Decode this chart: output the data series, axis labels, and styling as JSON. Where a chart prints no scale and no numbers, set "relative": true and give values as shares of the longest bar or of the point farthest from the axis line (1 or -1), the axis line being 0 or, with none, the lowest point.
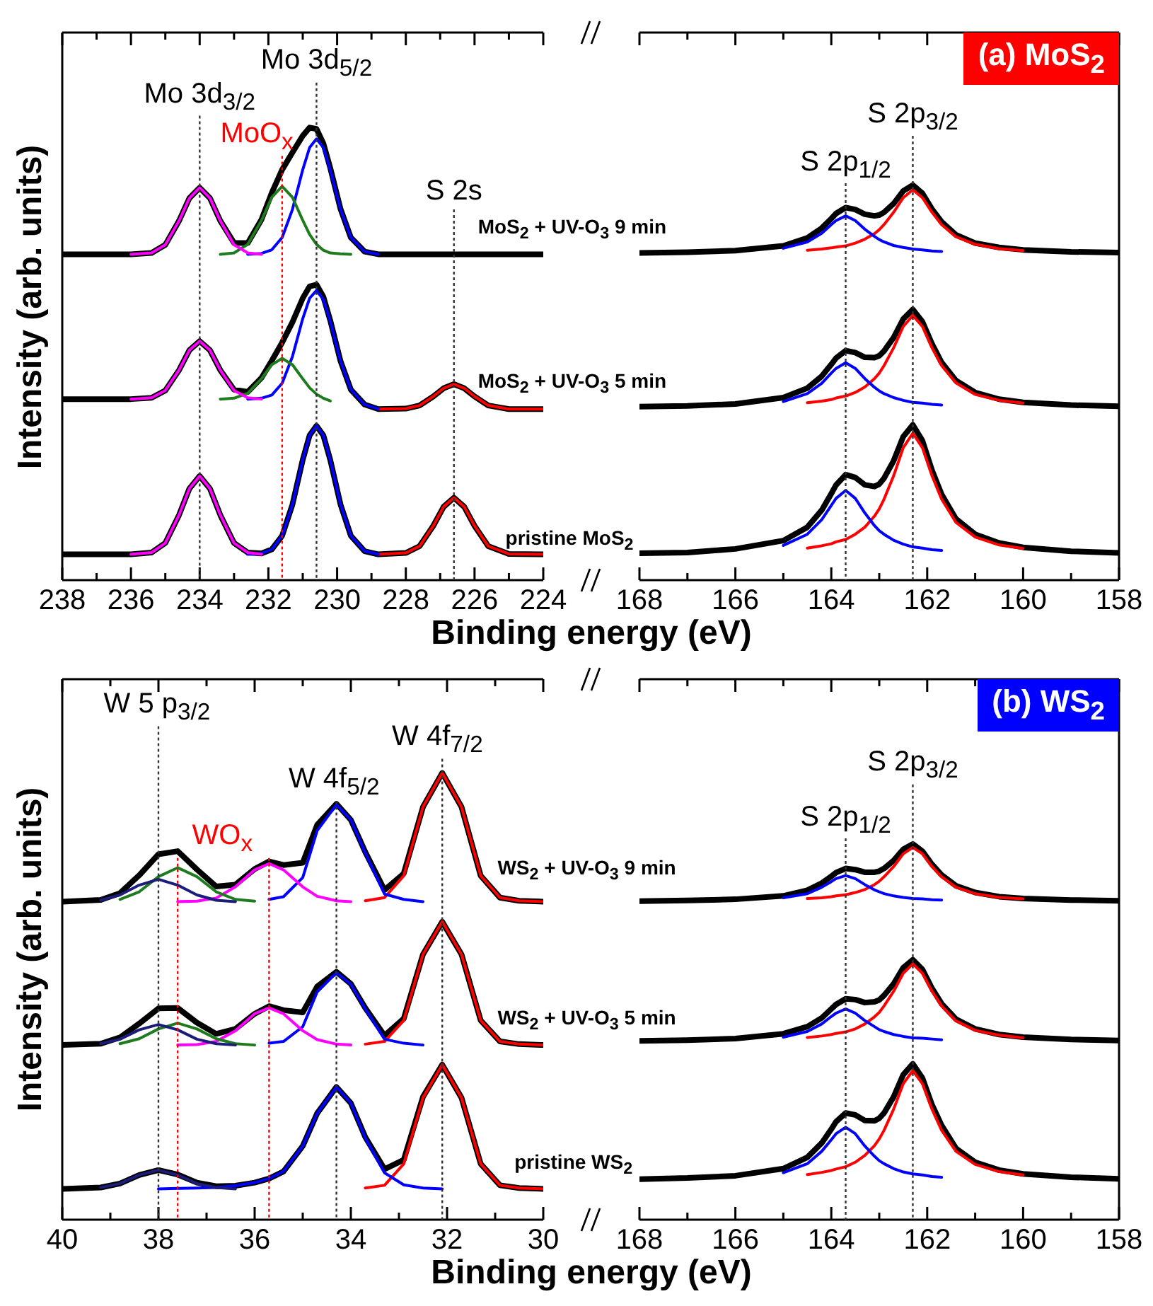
{
  "chart_data": [
    {
      "type": "line",
      "ylabel": "Intensity (arb. units)",
      "xlabel": "Binding energy (eV)",
      "relative": true,
      "marker": "none",
      "x": [
        238,
        236,
        235.4,
        235,
        234.6,
        234.3,
        234,
        233.7,
        233.4,
        233,
        232.6,
        232.2,
        231.9,
        231.6,
        231.3,
        231,
        230.8,
        230.6,
        230.4,
        230.2,
        229.9,
        229.6,
        229.2,
        228.8,
        228,
        227.6,
        227.2,
        226.9,
        226.6,
        226.3,
        226,
        225.6,
        225,
        224
      ],
      "xlim": [
        238,
        224
      ],
      "xticks": [
        238,
        {
          "value": 237,
          "label": null
        },
        236,
        {
          "value": 235,
          "label": null
        },
        234,
        {
          "value": 233,
          "label": null
        },
        232,
        {
          "value": 231,
          "label": null
        },
        230,
        {
          "value": 229,
          "label": null
        },
        228,
        {
          "value": 227,
          "label": null
        },
        226,
        {
          "value": 225,
          "label": null
        },
        224
      ],
      "series": [
        {
          "color": "#ff00ff",
          "values": [
            null,
            0.72,
            0.723,
            0.741,
            0.794,
            0.844,
            0.867,
            0.844,
            0.794,
            0.741,
            0.723,
            0.72,
            null,
            null,
            null,
            null,
            null,
            null,
            null,
            null,
            null,
            null,
            null,
            null,
            null,
            null,
            null,
            null,
            null,
            null,
            null,
            null,
            null,
            null
          ]
        },
        {
          "color": "#1e7b1e",
          "values": [
            null,
            null,
            null,
            null,
            null,
            null,
            null,
            null,
            0.72,
            0.723,
            0.742,
            0.795,
            0.846,
            0.87,
            0.846,
            0.795,
            0.764,
            0.742,
            0.729,
            0.723,
            0.721,
            0.72,
            null,
            null,
            null,
            null,
            null,
            null,
            null,
            null,
            null,
            null,
            null,
            null
          ]
        },
        {
          "color": "#0000ff",
          "values": [
            null,
            null,
            null,
            null,
            null,
            null,
            null,
            null,
            null,
            null,
            0.72,
            0.722,
            0.73,
            0.757,
            0.819,
            0.907,
            0.956,
            0.975,
            0.956,
            0.907,
            0.819,
            0.757,
            0.726,
            0.72,
            null,
            null,
            null,
            null,
            null,
            null,
            null,
            null,
            null,
            null
          ]
        },
        {
          "color": "#000000",
          "values": [
            0.72,
            0.72,
            0.723,
            0.741,
            0.794,
            0.844,
            0.867,
            0.844,
            0.794,
            0.745,
            0.745,
            0.797,
            0.856,
            0.907,
            0.945,
            0.982,
            1,
            0.997,
            0.965,
            0.911,
            0.82,
            0.757,
            0.726,
            0.72,
            0.72,
            0.72,
            0.72,
            0.72,
            0.72,
            0.72,
            0.72,
            0.72,
            0.72,
            0.72
          ]
        },
        {
          "color": "#ff00ff",
          "values": [
            null,
            0.4,
            0.403,
            0.419,
            0.464,
            0.508,
            0.528,
            0.508,
            0.464,
            0.419,
            0.403,
            0.4,
            null,
            null,
            null,
            null,
            null,
            null,
            null,
            null,
            null,
            null,
            null,
            null,
            null,
            null,
            null,
            null,
            null,
            null,
            null,
            null,
            null,
            null
          ]
        },
        {
          "color": "#1e7b1e",
          "values": [
            null,
            null,
            null,
            null,
            null,
            null,
            null,
            null,
            0.4,
            0.402,
            0.413,
            0.445,
            0.476,
            0.49,
            0.476,
            0.445,
            0.425,
            0.411,
            0.402,
            0.396,
            null,
            null,
            null,
            null,
            null,
            null,
            null,
            null,
            null,
            null,
            null,
            null,
            null,
            null
          ]
        },
        {
          "color": "#0000ff",
          "values": [
            null,
            null,
            null,
            null,
            null,
            null,
            null,
            null,
            null,
            null,
            0.4,
            0.402,
            0.409,
            0.435,
            0.494,
            0.578,
            0.623,
            0.64,
            0.62,
            0.572,
            0.484,
            0.421,
            0.388,
            0.378,
            null,
            null,
            null,
            null,
            null,
            null,
            null,
            null,
            null,
            null
          ]
        },
        {
          "color": "#ff0000",
          "values": [
            null,
            null,
            null,
            null,
            null,
            null,
            null,
            null,
            null,
            null,
            null,
            null,
            null,
            null,
            null,
            null,
            null,
            null,
            null,
            null,
            null,
            null,
            null,
            0.378,
            0.379,
            0.386,
            0.406,
            0.424,
            0.433,
            0.424,
            0.406,
            0.386,
            0.378,
            0.378
          ]
        },
        {
          "color": "#000000",
          "values": [
            0.4,
            0.4,
            0.403,
            0.419,
            0.464,
            0.508,
            0.528,
            0.508,
            0.464,
            0.421,
            0.416,
            0.447,
            0.485,
            0.525,
            0.57,
            0.623,
            0.649,
            0.653,
            0.626,
            0.574,
            0.484,
            0.421,
            0.388,
            0.378,
            0.379,
            0.386,
            0.406,
            0.424,
            0.433,
            0.424,
            0.406,
            0.386,
            0.378,
            0.378
          ]
        },
        {
          "color": "#ff00ff",
          "values": [
            null,
            0.057,
            0.061,
            0.082,
            0.144,
            0.202,
            0.23,
            0.202,
            0.144,
            0.082,
            0.061,
            0.057,
            null,
            null,
            null,
            null,
            null,
            null,
            null,
            null,
            null,
            null,
            null,
            null,
            null,
            null,
            null,
            null,
            null,
            null,
            null,
            null,
            null,
            null
          ]
        },
        {
          "color": "#0000ff",
          "values": [
            null,
            null,
            null,
            null,
            null,
            null,
            null,
            null,
            null,
            null,
            0.057,
            0.059,
            0.068,
            0.098,
            0.167,
            0.266,
            0.32,
            0.341,
            0.32,
            0.266,
            0.167,
            0.098,
            0.064,
            0.057,
            null,
            null,
            null,
            null,
            null,
            null,
            null,
            null,
            null,
            null
          ]
        },
        {
          "color": "#ff0000",
          "values": [
            null,
            null,
            null,
            null,
            null,
            null,
            null,
            null,
            null,
            null,
            null,
            null,
            null,
            null,
            null,
            null,
            null,
            null,
            null,
            null,
            null,
            null,
            null,
            0.057,
            0.06,
            0.075,
            0.12,
            0.162,
            0.182,
            0.162,
            0.12,
            0.075,
            0.058,
            0.057
          ]
        },
        {
          "color": "#000000",
          "values": [
            0.057,
            0.057,
            0.061,
            0.082,
            0.144,
            0.202,
            0.23,
            0.202,
            0.144,
            0.082,
            0.061,
            0.059,
            0.068,
            0.098,
            0.167,
            0.266,
            0.32,
            0.341,
            0.32,
            0.266,
            0.167,
            0.098,
            0.064,
            0.057,
            0.06,
            0.075,
            0.12,
            0.162,
            0.182,
            0.162,
            0.12,
            0.075,
            0.058,
            0.057
          ]
        }
      ],
      "annotations": [
        "Mo 3d$_{3/2}$",
        "Mo 3d$_{5/2}$",
        "MoO$_{x}$",
        "S 2s",
        "MoS$_{2}$ + UV-O$_{3}$ 9 min",
        "MoS$_{2}$ + UV-O$_{3}$ 5 min",
        "pristine MoS$_{2}$"
      ],
      "ref_lines": [
        {
          "axis": "x",
          "value": 234,
          "color": "#333333",
          "line_style": "dotted"
        },
        {
          "axis": "x",
          "value": 230.6,
          "color": "#333333",
          "line_style": "dotted"
        },
        {
          "axis": "x",
          "value": 231.6,
          "color": "#ff0000",
          "line_style": "dotted"
        },
        {
          "axis": "x",
          "value": 226.6,
          "color": "#333333",
          "line_style": "dotted"
        }
      ]
    },
    {
      "type": "line",
      "title": "(a) MoS$_{2}$",
      "relative": true,
      "marker": "none",
      "x": [
        168,
        167,
        166,
        165,
        164.5,
        164.2,
        164,
        163.9,
        163.7,
        163.5,
        163.3,
        163.1,
        163,
        162.9,
        162.7,
        162.5,
        162.3,
        162.1,
        161.9,
        161.7,
        161.4,
        161,
        160.5,
        160,
        159,
        158
      ],
      "xlim": [
        168,
        158
      ],
      "xticks": [
        168,
        {
          "value": 167,
          "label": null
        },
        166,
        {
          "value": 165,
          "label": null
        },
        164,
        {
          "value": 163,
          "label": null
        },
        162,
        {
          "value": 161,
          "label": null
        },
        160,
        {
          "value": 159,
          "label": null
        },
        158
      ],
      "series": [
        {
          "color": "#0000ff",
          "values": [
            null,
            null,
            null,
            0.84,
            0.856,
            0.878,
            0.9,
            0.91,
            0.922,
            0.91,
            0.888,
            0.87,
            0.862,
            0.856,
            0.847,
            0.842,
            0.838,
            0.836,
            0.833,
            0.832,
            null,
            null,
            null,
            null,
            null,
            null
          ]
        },
        {
          "color": "#ff0000",
          "values": [
            null,
            null,
            null,
            null,
            0.835,
            0.838,
            0.841,
            0.843,
            0.846,
            0.853,
            0.863,
            0.877,
            0.887,
            0.9,
            0.931,
            0.968,
            0.988,
            0.968,
            0.931,
            0.9,
            0.869,
            0.85,
            0.839,
            0.834,
            null,
            null
          ]
        },
        {
          "color": "#000000",
          "values": [
            0.828,
            0.83,
            0.834,
            0.846,
            0.866,
            0.891,
            0.915,
            0.928,
            0.943,
            0.938,
            0.926,
            0.922,
            0.924,
            0.931,
            0.953,
            0.985,
            1,
            0.979,
            0.939,
            0.907,
            0.874,
            0.853,
            0.842,
            0.836,
            0.831,
            0.829
          ]
        },
        {
          "color": "#0000ff",
          "values": [
            null,
            null,
            null,
            0.452,
            0.472,
            0.498,
            0.524,
            0.536,
            0.55,
            0.536,
            0.51,
            0.488,
            0.479,
            0.472,
            0.462,
            0.455,
            0.45,
            0.448,
            0.445,
            0.443,
            null,
            null,
            null,
            null,
            null,
            null
          ]
        },
        {
          "color": "#ff0000",
          "values": [
            null,
            null,
            null,
            null,
            0.449,
            0.453,
            0.457,
            0.461,
            0.466,
            0.475,
            0.489,
            0.51,
            0.524,
            0.543,
            0.588,
            0.642,
            0.67,
            0.642,
            0.588,
            0.543,
            0.499,
            0.47,
            0.455,
            0.448,
            null,
            null
          ]
        },
        {
          "color": "#000000",
          "values": [
            0.439,
            0.441,
            0.446,
            0.462,
            0.486,
            0.516,
            0.546,
            0.562,
            0.581,
            0.576,
            0.564,
            0.563,
            0.568,
            0.58,
            0.614,
            0.661,
            0.685,
            0.654,
            0.598,
            0.551,
            0.505,
            0.475,
            0.458,
            0.45,
            0.443,
            0.44
          ]
        },
        {
          "color": "#0000ff",
          "values": [
            null,
            null,
            null,
            0.088,
            0.116,
            0.153,
            0.189,
            0.207,
            0.227,
            0.207,
            0.17,
            0.138,
            0.125,
            0.116,
            0.101,
            0.091,
            0.084,
            0.081,
            0.077,
            0.075,
            null,
            null,
            null,
            null,
            null,
            null
          ]
        },
        {
          "color": "#ff0000",
          "values": [
            null,
            null,
            null,
            null,
            0.081,
            0.087,
            0.092,
            0.097,
            0.103,
            0.116,
            0.134,
            0.162,
            0.18,
            0.205,
            0.264,
            0.335,
            0.372,
            0.335,
            0.264,
            0.205,
            0.146,
            0.109,
            0.089,
            0.08,
            null,
            null
          ]
        },
        {
          "color": "#000000",
          "values": [
            0.068,
            0.07,
            0.079,
            0.1,
            0.134,
            0.177,
            0.219,
            0.241,
            0.267,
            0.26,
            0.241,
            0.237,
            0.243,
            0.258,
            0.302,
            0.363,
            0.393,
            0.353,
            0.278,
            0.217,
            0.155,
            0.116,
            0.094,
            0.083,
            0.073,
            0.069
          ]
        }
      ],
      "annotations": [
        "S 2p$_{1/2}$",
        "S 2p$_{3/2}$"
      ],
      "ref_lines": [
        {
          "axis": "x",
          "value": 163.7,
          "color": "#333333",
          "line_style": "dotted"
        },
        {
          "axis": "x",
          "value": 162.3,
          "color": "#333333",
          "line_style": "dotted"
        }
      ]
    },
    {
      "type": "line",
      "ylabel": "Intensity (arb. units)",
      "xlabel": "Binding energy (eV)",
      "relative": true,
      "marker": "none",
      "x": [
        40,
        39.2,
        38.8,
        38.4,
        38,
        37.6,
        37.2,
        36.8,
        36.4,
        36,
        35.7,
        35.4,
        35,
        34.7,
        34.3,
        34,
        33.7,
        33.3,
        32.9,
        32.5,
        32.1,
        31.7,
        31.3,
        30.9,
        30.5,
        30
      ],
      "xlim": [
        40,
        30
      ],
      "xticks": [
        40,
        {
          "value": 39,
          "label": null
        },
        38,
        {
          "value": 37,
          "label": null
        },
        36,
        {
          "value": 35,
          "label": null
        },
        34,
        {
          "value": 33,
          "label": null
        },
        32,
        {
          "value": 31,
          "label": null
        },
        30
      ],
      "series": [
        {
          "color": "#1c1c7a",
          "values": [
            null,
            0.715,
            0.727,
            0.749,
            0.762,
            0.749,
            0.727,
            0.715,
            0.712,
            null,
            null,
            null,
            null,
            null,
            null,
            null,
            null,
            null,
            null,
            null,
            null,
            null,
            null,
            null,
            null,
            null
          ]
        },
        {
          "color": "#1e7b1e",
          "values": [
            null,
            null,
            0.717,
            0.734,
            0.768,
            0.788,
            0.768,
            0.734,
            0.717,
            0.713,
            null,
            null,
            null,
            null,
            null,
            null,
            null,
            null,
            null,
            null,
            null,
            null,
            null,
            null,
            null,
            null
          ]
        },
        {
          "color": "#ff00ff",
          "values": [
            null,
            null,
            null,
            null,
            null,
            0.712,
            0.713,
            0.72,
            0.745,
            0.783,
            0.797,
            0.783,
            0.745,
            0.724,
            0.714,
            0.712,
            null,
            null,
            null,
            null,
            null,
            null,
            null,
            null,
            null,
            null
          ]
        },
        {
          "color": "#0000ff",
          "values": [
            null,
            null,
            null,
            null,
            null,
            null,
            null,
            null,
            null,
            null,
            0.717,
            0.723,
            0.766,
            0.871,
            0.929,
            0.895,
            0.821,
            0.729,
            0.717,
            0.712,
            null,
            null,
            null,
            null,
            null,
            null
          ]
        },
        {
          "color": "#ff0000",
          "values": [
            null,
            null,
            null,
            null,
            null,
            null,
            null,
            null,
            null,
            null,
            null,
            null,
            null,
            null,
            null,
            null,
            0.714,
            0.721,
            0.77,
            0.924,
            1,
            0.924,
            0.77,
            0.721,
            0.714,
            0.712
          ]
        },
        {
          "color": "#000000",
          "values": [
            0.712,
            0.716,
            0.731,
            0.771,
            0.818,
            0.825,
            0.784,
            0.746,
            0.75,
            0.785,
            0.802,
            0.794,
            0.799,
            0.884,
            0.931,
            0.895,
            0.823,
            0.738,
            0.775,
            0.924,
            1,
            0.924,
            0.77,
            0.721,
            0.714,
            0.712
          ]
        },
        {
          "color": "#1c1c7a",
          "values": [
            null,
            0.394,
            0.404,
            0.425,
            0.437,
            0.425,
            0.404,
            0.394,
            0.391,
            null,
            null,
            null,
            null,
            null,
            null,
            null,
            null,
            null,
            null,
            null,
            null,
            null,
            null,
            null,
            null,
            null
          ]
        },
        {
          "color": "#1e7b1e",
          "values": [
            null,
            null,
            0.394,
            0.405,
            0.427,
            0.44,
            0.427,
            0.405,
            0.394,
            0.391,
            null,
            null,
            null,
            null,
            null,
            null,
            null,
            null,
            null,
            null,
            null,
            null,
            null,
            null,
            null,
            null
          ]
        },
        {
          "color": "#ff00ff",
          "values": [
            null,
            null,
            null,
            null,
            null,
            0.391,
            0.392,
            0.399,
            0.423,
            0.461,
            0.474,
            0.461,
            0.423,
            0.403,
            0.393,
            0.391,
            null,
            null,
            null,
            null,
            null,
            null,
            null,
            null,
            null,
            null
          ]
        },
        {
          "color": "#0000ff",
          "values": [
            null,
            null,
            null,
            null,
            null,
            null,
            null,
            null,
            null,
            null,
            0.395,
            0.399,
            0.432,
            0.51,
            0.553,
            0.527,
            0.472,
            0.404,
            0.395,
            0.391,
            null,
            null,
            null,
            null,
            null,
            null
          ]
        },
        {
          "color": "#ff0000",
          "values": [
            null,
            null,
            null,
            null,
            null,
            null,
            null,
            null,
            null,
            null,
            null,
            null,
            null,
            null,
            null,
            null,
            0.393,
            0.399,
            0.446,
            0.594,
            0.667,
            0.594,
            0.446,
            0.399,
            0.393,
            0.391
          ]
        },
        {
          "color": "#000000",
          "values": [
            0.391,
            0.394,
            0.408,
            0.439,
            0.473,
            0.474,
            0.441,
            0.416,
            0.427,
            0.461,
            0.478,
            0.469,
            0.464,
            0.522,
            0.555,
            0.528,
            0.474,
            0.412,
            0.45,
            0.594,
            0.667,
            0.594,
            0.446,
            0.399,
            0.393,
            0.391
          ]
        },
        {
          "color": "#1c1c7a",
          "values": [
            null,
            0.072,
            0.081,
            0.1,
            0.111,
            0.1,
            0.081,
            0.072,
            0.069,
            null,
            null,
            null,
            null,
            null,
            null,
            null,
            null,
            null,
            null,
            null,
            null,
            null,
            null,
            null,
            null,
            null
          ]
        },
        {
          "color": "#0000ff",
          "values": [
            null,
            null,
            null,
            null,
            0.069,
            0.07,
            0.071,
            0.072,
            0.076,
            0.083,
            0.092,
            0.108,
            0.165,
            0.238,
            0.297,
            0.261,
            0.183,
            0.105,
            0.078,
            0.071,
            0.069,
            null,
            null,
            null,
            null,
            null
          ]
        },
        {
          "color": "#ff0000",
          "values": [
            null,
            null,
            null,
            null,
            null,
            null,
            null,
            null,
            null,
            null,
            null,
            null,
            null,
            null,
            null,
            null,
            0.071,
            0.077,
            0.125,
            0.273,
            0.347,
            0.273,
            0.125,
            0.077,
            0.071,
            0.069
          ]
        },
        {
          "color": "#000000",
          "values": [
            0.069,
            0.072,
            0.081,
            0.1,
            0.111,
            0.101,
            0.083,
            0.075,
            0.076,
            0.083,
            0.092,
            0.108,
            0.165,
            0.238,
            0.297,
            0.261,
            0.185,
            0.113,
            0.134,
            0.275,
            0.347,
            0.273,
            0.125,
            0.077,
            0.071,
            0.069
          ]
        }
      ],
      "annotations": [
        "W 5 p$_{3/2}$",
        "WO$_{x}$",
        "W 4f$_{5/2}$",
        "W 4f$_{7/2}$",
        "WS$_{2}$ + UV-O$_{3}$ 9 min",
        "WS$_{2}$ + UV-O$_{3}$ 5 min",
        "pristine WS$_{2}$"
      ],
      "ref_lines": [
        {
          "axis": "x",
          "value": 38,
          "color": "#333333",
          "line_style": "dotted"
        },
        {
          "axis": "x",
          "value": 37.6,
          "color": "#ff0000",
          "line_style": "dotted"
        },
        {
          "axis": "x",
          "value": 35.7,
          "color": "#ff0000",
          "line_style": "dotted"
        },
        {
          "axis": "x",
          "value": 34.3,
          "color": "#333333",
          "line_style": "dotted"
        },
        {
          "axis": "x",
          "value": 32.1,
          "color": "#333333",
          "line_style": "dotted"
        }
      ]
    },
    {
      "type": "line",
      "title": "(b) WS$_{2}$",
      "relative": true,
      "marker": "none",
      "x": [
        168,
        167,
        166,
        165,
        164.5,
        164.2,
        164,
        163.9,
        163.7,
        163.5,
        163.3,
        163.1,
        163,
        162.9,
        162.7,
        162.5,
        162.3,
        162.1,
        161.9,
        161.7,
        161.4,
        161,
        160.5,
        160,
        159,
        158
      ],
      "xlim": [
        168,
        158
      ],
      "xticks": [
        168,
        {
          "value": 167,
          "label": null
        },
        166,
        {
          "value": 165,
          "label": null
        },
        164,
        {
          "value": 163,
          "label": null
        },
        162,
        {
          "value": 161,
          "label": null
        },
        160,
        {
          "value": 159,
          "label": null
        },
        158
      ],
      "series": [
        {
          "color": "#0000ff",
          "values": [
            null,
            null,
            null,
            0.857,
            0.868,
            0.885,
            0.9,
            0.908,
            0.916,
            0.908,
            0.892,
            0.878,
            0.873,
            0.868,
            0.862,
            0.858,
            0.855,
            0.854,
            0.852,
            0.851,
            null,
            null,
            null,
            null,
            null,
            null
          ]
        },
        {
          "color": "#ff0000",
          "values": [
            null,
            null,
            null,
            null,
            0.855,
            0.857,
            0.86,
            0.862,
            0.865,
            0.871,
            0.879,
            0.892,
            0.901,
            0.913,
            0.94,
            0.974,
            0.991,
            0.974,
            0.94,
            0.913,
            0.885,
            0.868,
            0.858,
            0.854,
            null,
            null
          ]
        },
        {
          "color": "#000000",
          "values": [
            0.848,
            0.85,
            0.853,
            0.862,
            0.877,
            0.896,
            0.914,
            0.924,
            0.935,
            0.932,
            0.925,
            0.925,
            0.928,
            0.935,
            0.956,
            0.986,
            1,
            0.981,
            0.946,
            0.918,
            0.889,
            0.871,
            0.86,
            0.855,
            0.851,
            0.849
          ]
        },
        {
          "color": "#0000ff",
          "values": [
            null,
            null,
            null,
            0.486,
            0.501,
            0.521,
            0.541,
            0.55,
            0.561,
            0.55,
            0.53,
            0.514,
            0.506,
            0.501,
            0.493,
            0.488,
            0.484,
            0.483,
            0.481,
            0.479,
            null,
            null,
            null,
            null,
            null,
            null
          ]
        },
        {
          "color": "#ff0000",
          "values": [
            null,
            null,
            null,
            null,
            0.485,
            0.489,
            0.493,
            0.496,
            0.5,
            0.508,
            0.521,
            0.54,
            0.552,
            0.569,
            0.608,
            0.656,
            0.681,
            0.656,
            0.608,
            0.569,
            0.529,
            0.504,
            0.491,
            0.484,
            null,
            null
          ]
        },
        {
          "color": "#000000",
          "values": [
            0.476,
            0.478,
            0.482,
            0.495,
            0.514,
            0.537,
            0.561,
            0.573,
            0.588,
            0.586,
            0.578,
            0.58,
            0.585,
            0.597,
            0.628,
            0.671,
            0.692,
            0.666,
            0.616,
            0.575,
            0.534,
            0.508,
            0.493,
            0.486,
            0.48,
            0.477
          ]
        },
        {
          "color": "#0000ff",
          "values": [
            null,
            null,
            null,
            0.125,
            0.149,
            0.182,
            0.213,
            0.229,
            0.246,
            0.229,
            0.196,
            0.169,
            0.157,
            0.149,
            0.136,
            0.127,
            0.122,
            0.119,
            0.115,
            0.113,
            null,
            null,
            null,
            null,
            null,
            null
          ]
        },
        {
          "color": "#ff0000",
          "values": [
            null,
            null,
            null,
            null,
            0.12,
            0.126,
            0.131,
            0.135,
            0.141,
            0.153,
            0.171,
            0.197,
            0.215,
            0.238,
            0.294,
            0.362,
            0.397,
            0.362,
            0.294,
            0.238,
            0.182,
            0.147,
            0.128,
            0.119,
            null,
            null
          ]
        },
        {
          "color": "#000000",
          "values": [
            0.108,
            0.111,
            0.117,
            0.136,
            0.166,
            0.204,
            0.241,
            0.261,
            0.284,
            0.279,
            0.264,
            0.263,
            0.27,
            0.284,
            0.327,
            0.386,
            0.415,
            0.377,
            0.306,
            0.251,
            0.19,
            0.153,
            0.132,
            0.122,
            0.113,
            0.109
          ]
        }
      ],
      "annotations": [
        "S 2p$_{1/2}$",
        "S 2p$_{3/2}$"
      ],
      "ref_lines": [
        {
          "axis": "x",
          "value": 163.7,
          "color": "#333333",
          "line_style": "dotted"
        },
        {
          "axis": "x",
          "value": 162.3,
          "color": "#333333",
          "line_style": "dotted"
        }
      ]
    }
  ]
}
